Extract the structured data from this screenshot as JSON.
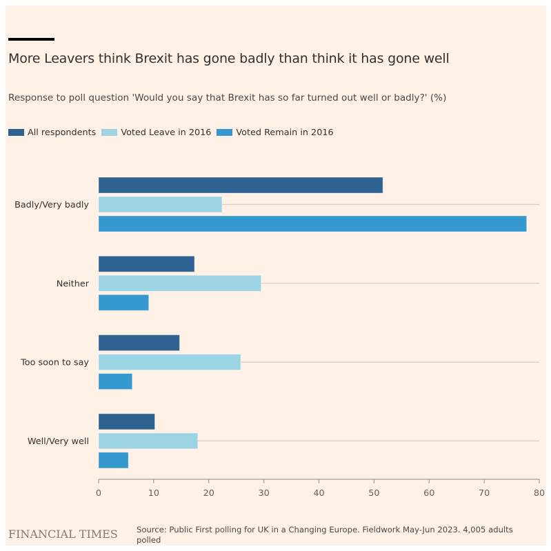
{
  "title": "More Leavers think Brexit has gone badly than think it has gone well",
  "subtitle": "Response to poll question 'Would you say that Brexit has so far turned out well or badly?' (%)",
  "footer": {
    "logo": "FINANCIAL TIMES",
    "source": "Source: Public First polling for UK in a Changing Europe. Fieldwork May-Jun 2023. 4,005 adults polled"
  },
  "colors": {
    "background": "#fff1e5",
    "all_respondents": "#2e6391",
    "voted_leave": "#9dd4e3",
    "voted_remain": "#3599cf",
    "gridline": "#d9cbc0",
    "axis": "#a39d98"
  },
  "chart_data": {
    "type": "bar",
    "orientation": "horizontal",
    "title": "More Leavers think Brexit has gone badly than think it has gone well",
    "subtitle": "Response to poll question 'Would you say that Brexit has so far turned out well or badly?' (%)",
    "xlabel": "",
    "ylabel": "",
    "categories": [
      "Badly/Very badly",
      "Neither",
      "Too soon to say",
      "Well/Very well"
    ],
    "series": [
      {
        "name": "All respondents",
        "color": "#2e6391",
        "values": [
          51.6,
          17.4,
          14.7,
          10.2
        ]
      },
      {
        "name": "Voted Leave in 2016",
        "color": "#9dd4e3",
        "values": [
          22.4,
          29.5,
          25.8,
          18.0
        ]
      },
      {
        "name": "Voted Remain in 2016",
        "color": "#3599cf",
        "values": [
          77.7,
          9.1,
          6.1,
          5.4
        ]
      }
    ],
    "xlim": [
      0,
      80
    ],
    "xticks": [
      0,
      10,
      20,
      30,
      40,
      50,
      60,
      70,
      80
    ],
    "xtick_labels": [
      "0",
      "10",
      "20",
      "30",
      "40",
      "50",
      "60",
      "70",
      "80"
    ],
    "grid": true,
    "legend_position": "top-left"
  }
}
